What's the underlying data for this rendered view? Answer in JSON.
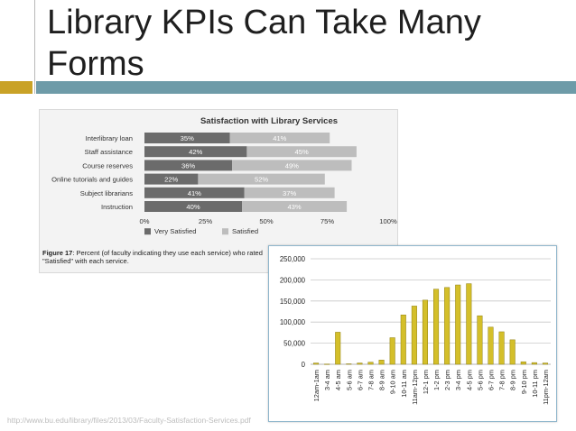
{
  "slide": {
    "title": "Library KPIs Can Take Many Forms",
    "source_url": "http://www.bu.edu/library/files/2013/03/Faculty-Satisfaction-Services.pdf"
  },
  "colors": {
    "accent_gold": "#c9a227",
    "accent_teal": "#6e9ba8",
    "very_satisfied": "#6b6b6b",
    "satisfied": "#bdbdbd",
    "hourly_bar": "#d4bf2a"
  },
  "chart_data": [
    {
      "type": "bar",
      "orientation": "horizontal",
      "stacked": true,
      "title": "Satisfaction with Library Services",
      "categories": [
        "Interlibrary loan",
        "Staff assistance",
        "Course reserves",
        "Online tutorials and guides",
        "Subject librarians",
        "Instruction"
      ],
      "series": [
        {
          "name": "Very Satisfied",
          "values": [
            35,
            42,
            36,
            22,
            41,
            40
          ],
          "labels": [
            "35%",
            "42%",
            "36%",
            "22%",
            "41%",
            "40%"
          ]
        },
        {
          "name": "Satisfied",
          "values": [
            41,
            45,
            49,
            52,
            37,
            43
          ],
          "labels": [
            "41%",
            "45%",
            "49%",
            "52%",
            "37%",
            "43%"
          ]
        }
      ],
      "xlim": [
        0,
        100
      ],
      "xticks": [
        "0%",
        "25%",
        "50%",
        "75%",
        "100%"
      ],
      "legend": "bottom-left",
      "caption_bold": "Figure 17",
      "caption": ": Percent (of faculty indicating they use each service) who rated \"Satisfied\" with each service."
    },
    {
      "type": "bar",
      "orientation": "vertical",
      "categories": [
        "12am-1am",
        "3-4 am",
        "4-5 am",
        "5-6 am",
        "6-7 am",
        "7-8 am",
        "8-9 am",
        "9-10 am",
        "10-11 am",
        "11am-12pm",
        "12-1 pm",
        "1-2 pm",
        "2-3 pm",
        "3-4 pm",
        "4-5 pm",
        "5-6 pm",
        "6-7 pm",
        "7-8 pm",
        "8-9 pm",
        "9-10 pm",
        "10-11 pm",
        "11pm-12am"
      ],
      "values": [
        3000,
        500,
        76000,
        1000,
        3000,
        5000,
        10000,
        63000,
        117000,
        138000,
        152000,
        178000,
        182000,
        188000,
        191000,
        115000,
        88000,
        77000,
        58000,
        6000,
        4000,
        3000
      ],
      "ylim": [
        0,
        250000
      ],
      "yticks": [
        "0",
        "50,000",
        "100,000",
        "150,000",
        "200,000",
        "250,000"
      ],
      "grid": true
    }
  ]
}
